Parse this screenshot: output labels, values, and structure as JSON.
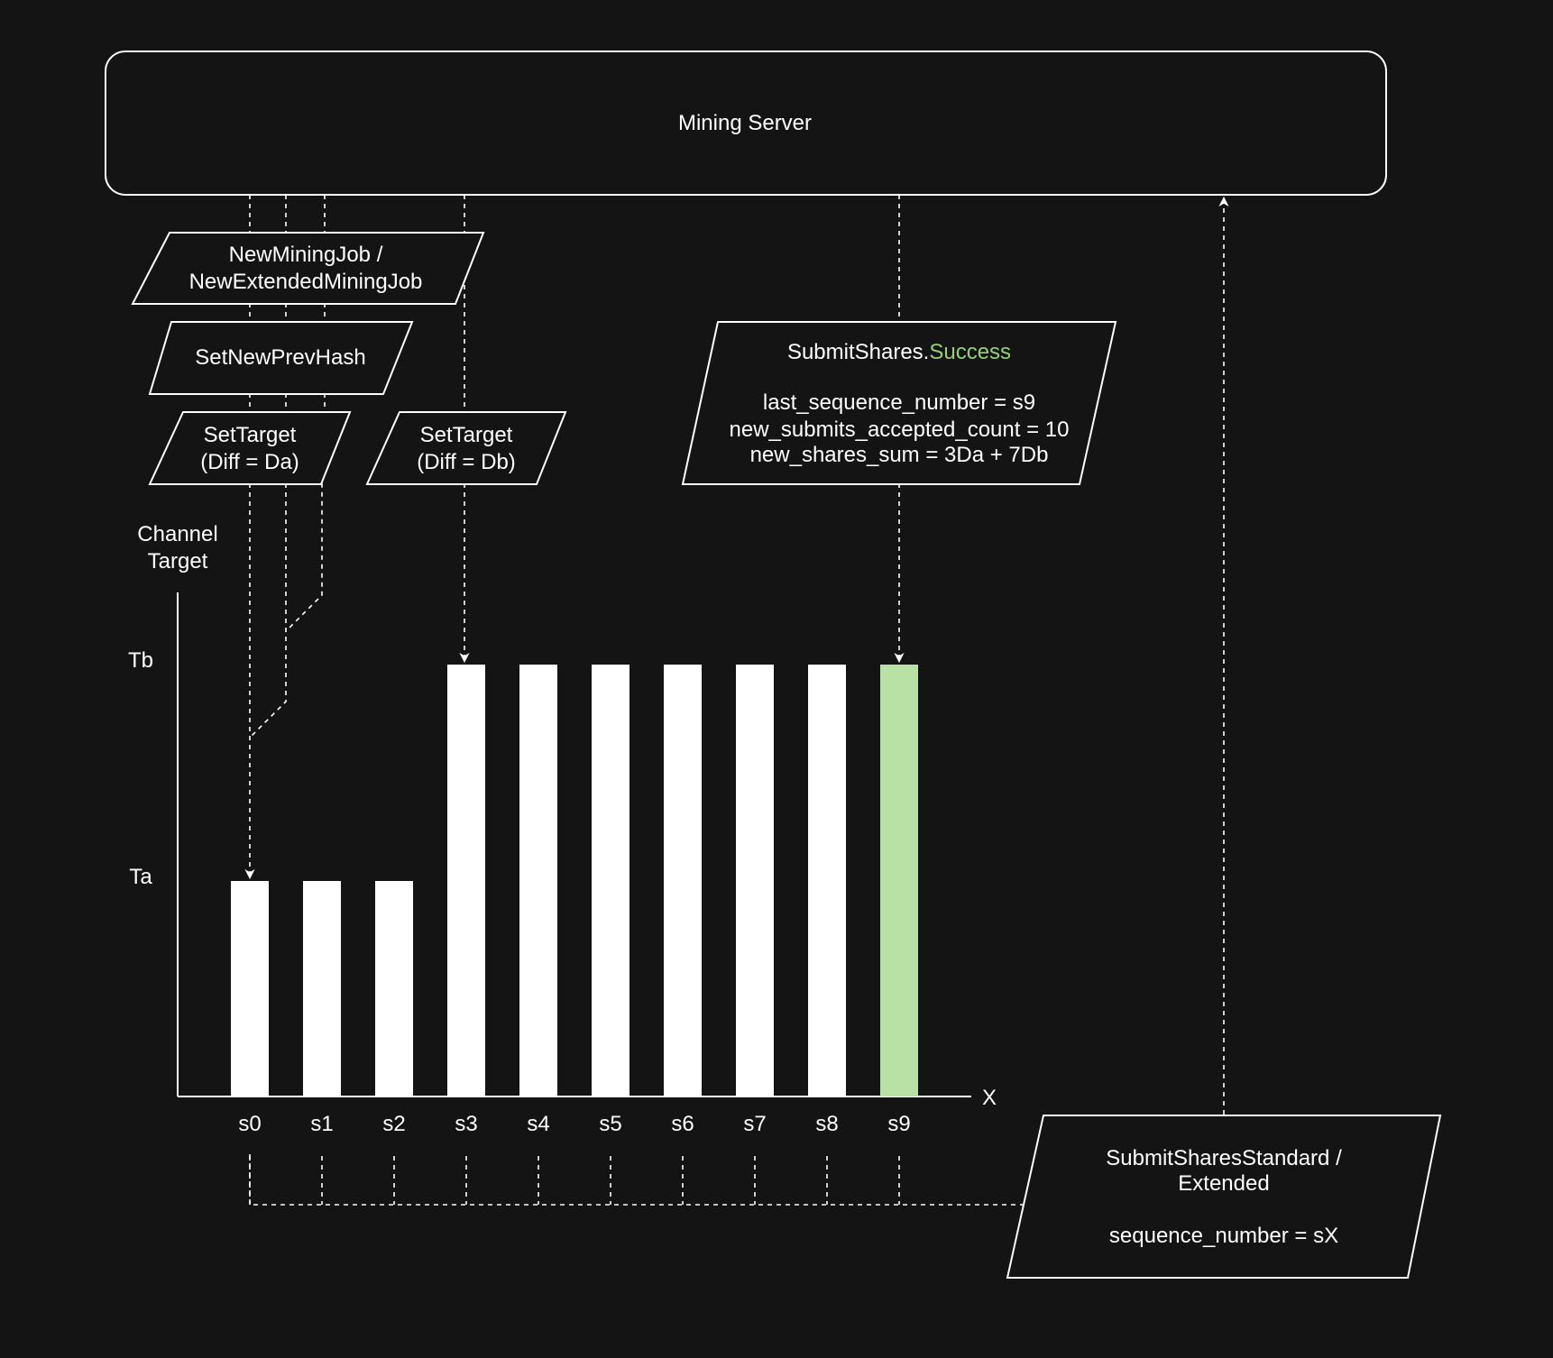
{
  "server": {
    "label": "Mining Server"
  },
  "messages": {
    "new_mining_job": [
      "NewMiningJob /",
      "NewExtendedMiningJob"
    ],
    "set_new_prev_hash": "SetNewPrevHash",
    "set_target_a": [
      "SetTarget",
      "(Diff = Da)"
    ],
    "set_target_b": [
      "SetTarget",
      "(Diff = Db)"
    ],
    "submit_success": {
      "title_prefix": "SubmitShares.",
      "title_status": "Success",
      "lines": [
        "last_sequence_number = s9",
        "new_submits_accepted_count = 10",
        "new_shares_sum = 3Da + 7Db"
      ]
    },
    "submit_shares": {
      "lines": [
        "SubmitSharesStandard /",
        "Extended"
      ],
      "sequence": "sequence_number = sX"
    }
  },
  "chart_data": {
    "type": "bar",
    "ylabel": "Channel Target",
    "xlabel": "X",
    "y_levels": [
      {
        "name": "Ta",
        "value": 1
      },
      {
        "name": "Tb",
        "value": 2
      }
    ],
    "categories": [
      "s0",
      "s1",
      "s2",
      "s3",
      "s4",
      "s5",
      "s6",
      "s7",
      "s8",
      "s9"
    ],
    "values": [
      1,
      1,
      1,
      2,
      2,
      2,
      2,
      2,
      2,
      2
    ],
    "highlighted": "s9",
    "ylim": [
      0,
      2
    ]
  },
  "colors": {
    "background": "#141414",
    "foreground": "#ffffff",
    "bar": "#ffffff",
    "bar_highlight": "#b9e0a5",
    "success_text": "#97d077"
  }
}
